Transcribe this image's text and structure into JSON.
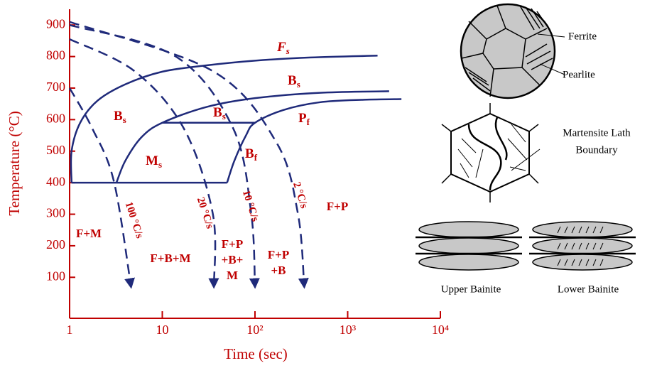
{
  "chart_data": {
    "type": "line",
    "x_label": "Time (sec)",
    "y_label": "Temperature (°C)",
    "xlog": true,
    "xlim": [
      1,
      10000
    ],
    "xticks": [
      1,
      10,
      {
        "value": 100,
        "label": "10²"
      },
      {
        "value": 1000,
        "label": "10³"
      },
      {
        "value": 10000,
        "label": "10⁴"
      }
    ],
    "ylim": [
      -30,
      950
    ],
    "yticks": [
      100,
      200,
      300,
      400,
      500,
      600,
      700,
      800,
      900
    ],
    "axis_color": "#c00000",
    "line_color": "#1f2a7a",
    "series": [
      {
        "x": [
          1.05,
          1.05,
          1.3,
          2,
          4,
          10,
          30,
          100,
          400,
          2100
        ],
        "y": [
          400,
          500,
          590,
          660,
          712,
          752,
          772,
          787,
          797,
          803
        ],
        "dashed": false
      },
      {
        "x": [
          3.2,
          4,
          6,
          10,
          30,
          100,
          500,
          2800
        ],
        "y": [
          400,
          470,
          545,
          590,
          640,
          668,
          685,
          690
        ],
        "dashed": false
      },
      {
        "x": [
          50,
          60,
          80,
          100,
          200,
          500,
          1500,
          3800
        ],
        "y": [
          400,
          470,
          550,
          590,
          630,
          655,
          663,
          665
        ],
        "dashed": false
      },
      {
        "x": [
          1.05,
          50
        ],
        "y": [
          400,
          400
        ],
        "dashed": false
      },
      {
        "x": [
          10,
          100
        ],
        "y": [
          590,
          590
        ],
        "dashed": false
      },
      {
        "x": [
          1,
          1.75,
          3,
          4.6
        ],
        "y": [
          700,
          573,
          405,
          70
        ],
        "dashed": true
      },
      {
        "x": [
          1,
          5,
          17,
          35,
          36
        ],
        "y": [
          855,
          754,
          573,
          303,
          70
        ],
        "dashed": true
      },
      {
        "x": [
          1,
          14,
          58,
          91,
          100
        ],
        "y": [
          900,
          800,
          573,
          303,
          70
        ],
        "dashed": true
      },
      {
        "x": [
          1,
          35,
          170,
          290,
          340
        ],
        "y": [
          910,
          754,
          528,
          303,
          70
        ],
        "dashed": true
      }
    ],
    "annotations": [
      {
        "text": "F",
        "sub": "s"
      },
      {
        "text": "B",
        "sub": "s"
      },
      {
        "text": "B",
        "sub": "s"
      },
      {
        "text": "B",
        "sub": "s"
      },
      {
        "text": "P",
        "sub": "f"
      },
      {
        "text": "M",
        "sub": "s"
      },
      {
        "text": "B",
        "sub": "f"
      },
      {
        "lines": [
          "F+M"
        ]
      },
      {
        "lines": [
          "F+B+M"
        ]
      },
      {
        "lines": [
          "F+P",
          "+B+",
          "M"
        ]
      },
      {
        "lines": [
          "F+P",
          "+B"
        ]
      },
      {
        "lines": [
          "F+P"
        ]
      }
    ],
    "rate_labels": [
      "100 °C/s",
      "20 °C/s",
      "10 °C/s",
      "2 °C/s"
    ]
  },
  "insets": {
    "ferrite": "Ferrite",
    "pearlite": "Pearlite",
    "martensite": [
      "Martensite Lath",
      "Boundary"
    ],
    "upper_bainite": "Upper Bainite",
    "lower_bainite": "Lower Bainite"
  }
}
